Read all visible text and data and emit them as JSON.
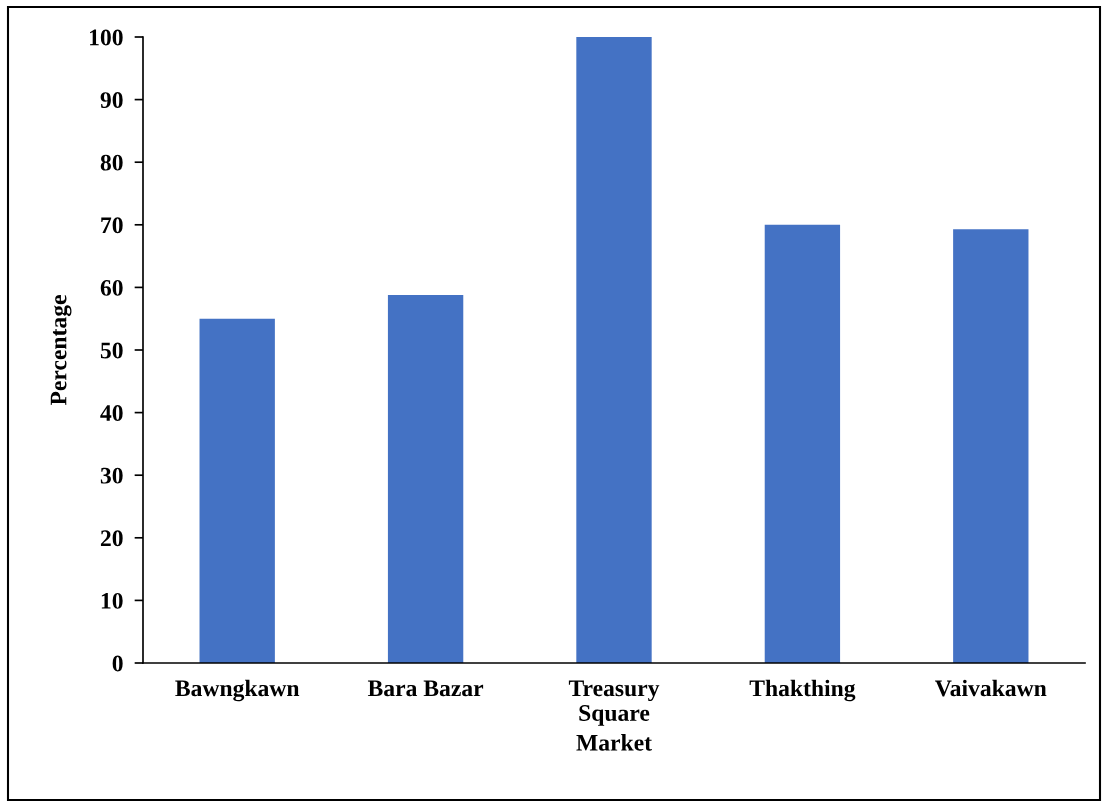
{
  "chart_data": {
    "type": "bar",
    "xlabel": "Market",
    "ylabel": "Percentage",
    "categories": [
      "Bawngkawn",
      "Bara Bazar",
      "Treasury\nSquare",
      "Thakthing",
      "Vaivakawn"
    ],
    "values": [
      55,
      58.8,
      100,
      70,
      69.3
    ],
    "color": "#4472c4",
    "ylim": [
      0,
      100
    ],
    "yticks": [
      0,
      10,
      20,
      30,
      40,
      50,
      60,
      70,
      80,
      90,
      100
    ]
  }
}
